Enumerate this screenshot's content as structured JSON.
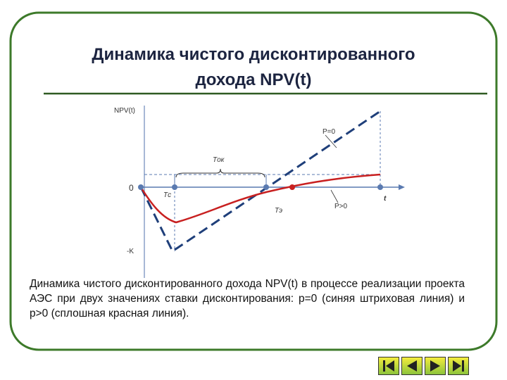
{
  "title": {
    "line1": "Динамика чистого дисконтированного",
    "line2": "дохода NPV(t)"
  },
  "diagram": {
    "y_axis_label": "NPV(t)",
    "zero_label": "0",
    "neg_k_label": "-K",
    "x_axis_label": "t",
    "p0_label": "P=0",
    "ppos_label": "P>0",
    "payback_label": "Tок",
    "tc_label": "Tс",
    "te_label": "Tэ"
  },
  "caption": "Динамика чистого дисконтированного дохода NPV(t) в процессе реализации проекта АЭС при двух значениях ставки дисконтирования: p=0 (синяя штриховая линия) и p>0 (сплошная красная линия)."
}
